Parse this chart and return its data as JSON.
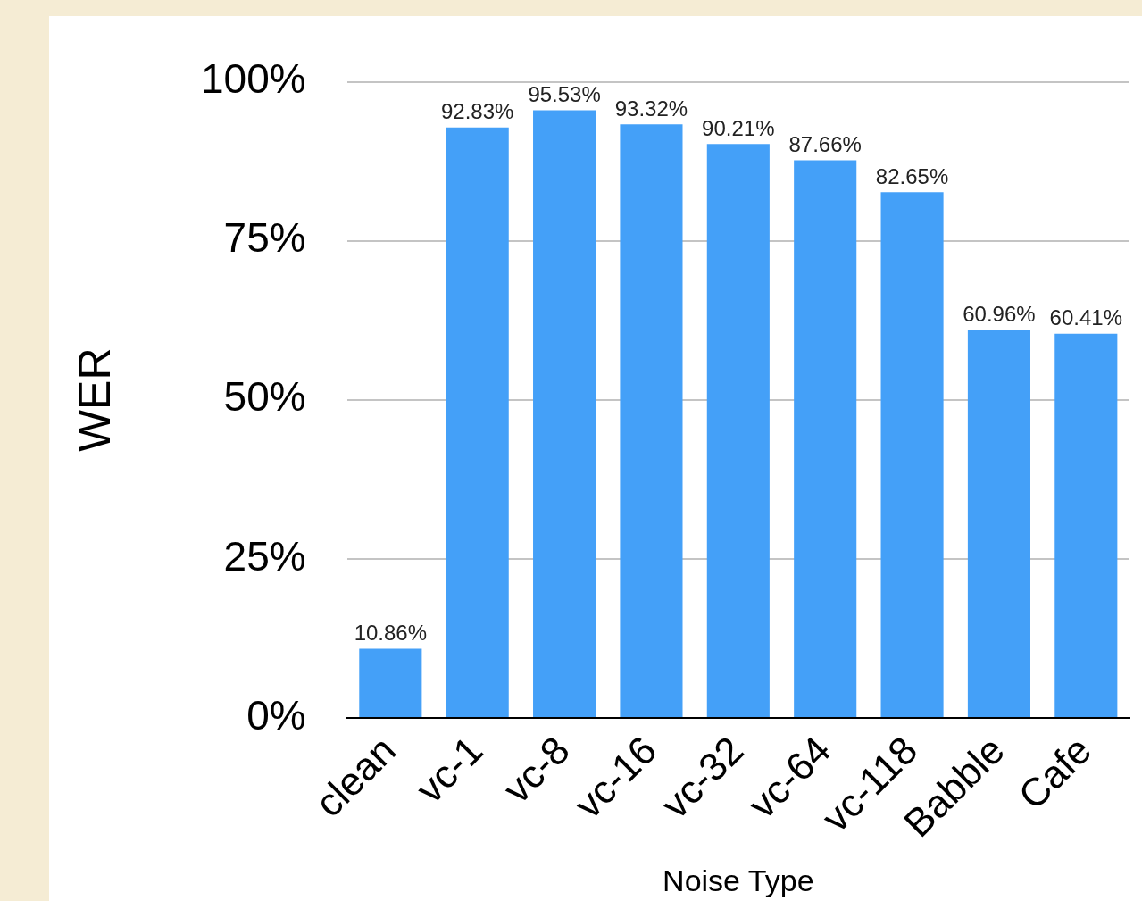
{
  "chart_data": {
    "type": "bar",
    "xlabel": "Noise Type",
    "ylabel": "WER",
    "categories": [
      "clean",
      "vc-1",
      "vc-8",
      "vc-16",
      "vc-32",
      "vc-64",
      "vc-118",
      "Babble",
      "Cafe"
    ],
    "values": [
      10.86,
      92.83,
      95.53,
      93.32,
      90.21,
      87.66,
      82.65,
      60.96,
      60.41
    ],
    "value_labels": [
      "10.86%",
      "92.83%",
      "95.53%",
      "93.32%",
      "90.21%",
      "87.66%",
      "82.65%",
      "60.96%",
      "60.41%"
    ],
    "color": "#44a0f8",
    "ylim": [
      0,
      100
    ],
    "yticks": [
      {
        "value": 0,
        "label": "0%"
      },
      {
        "value": 25,
        "label": "25%"
      },
      {
        "value": 50,
        "label": "50%"
      },
      {
        "value": 75,
        "label": "75%"
      },
      {
        "value": 100,
        "label": "100%"
      }
    ],
    "grid": "y",
    "legend": false
  }
}
